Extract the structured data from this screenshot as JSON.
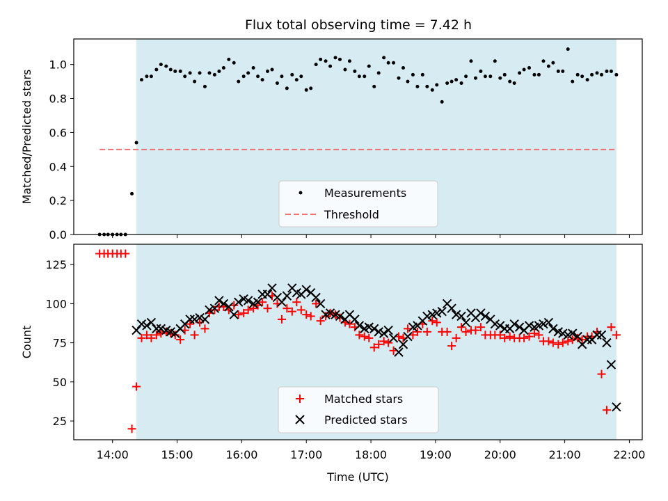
{
  "chart_data": [
    {
      "type": "scatter",
      "title": "Flux total observing time = 7.42 h",
      "ylabel": "Matched/Predicted stars",
      "xlabel": "",
      "xlim": [
        13.4,
        22.2
      ],
      "ylim": [
        0.0,
        1.15
      ],
      "yticks": [
        0.0,
        0.2,
        0.4,
        0.6,
        0.8,
        1.0
      ],
      "ytick_labels": [
        "0.0",
        "0.2",
        "0.4",
        "0.6",
        "0.8",
        "1.0"
      ],
      "xticks": [
        14,
        15,
        16,
        17,
        18,
        19,
        20,
        21,
        22
      ],
      "shaded_span": {
        "x": [
          14.37,
          21.8
        ],
        "color": "#add8e6"
      },
      "threshold": {
        "name": "Threshold",
        "value": 0.5,
        "x": [
          13.8,
          21.8
        ],
        "color": "#f07070"
      },
      "legend": [
        "Measurements",
        "Threshold"
      ],
      "legend_position": "lower center",
      "series": [
        {
          "name": "Measurements",
          "color": "#000000",
          "x": [
            13.8,
            13.87,
            13.93,
            14.0,
            14.07,
            14.13,
            14.2,
            14.3,
            14.37,
            14.45,
            14.53,
            14.6,
            14.68,
            14.75,
            14.83,
            14.9,
            14.97,
            15.05,
            15.12,
            15.2,
            15.27,
            15.35,
            15.43,
            15.5,
            15.58,
            15.65,
            15.72,
            15.8,
            15.88,
            15.95,
            16.03,
            16.1,
            16.18,
            16.25,
            16.32,
            16.4,
            16.47,
            16.55,
            16.62,
            16.7,
            16.78,
            16.85,
            16.92,
            17.0,
            17.07,
            17.15,
            17.22,
            17.3,
            17.37,
            17.45,
            17.52,
            17.6,
            17.67,
            17.75,
            17.82,
            17.9,
            17.97,
            18.05,
            18.12,
            18.2,
            18.27,
            18.35,
            18.43,
            18.5,
            18.57,
            18.65,
            18.72,
            18.8,
            18.87,
            18.95,
            19.02,
            19.1,
            19.18,
            19.25,
            19.32,
            19.4,
            19.47,
            19.55,
            19.62,
            19.7,
            19.77,
            19.85,
            19.92,
            20.0,
            20.07,
            20.15,
            20.22,
            20.3,
            20.37,
            20.45,
            20.53,
            20.6,
            20.67,
            20.75,
            20.82,
            20.9,
            20.97,
            21.05,
            21.12,
            21.2,
            21.27,
            21.35,
            21.42,
            21.5,
            21.57,
            21.65,
            21.72,
            21.8
          ],
          "y": [
            0.0,
            0.0,
            0.0,
            0.0,
            0.0,
            0.0,
            0.0,
            0.24,
            0.54,
            0.91,
            0.93,
            0.93,
            0.97,
            1.0,
            0.99,
            0.97,
            0.96,
            0.96,
            0.93,
            0.95,
            0.9,
            0.95,
            0.87,
            0.95,
            0.94,
            0.96,
            0.98,
            1.03,
            1.01,
            0.9,
            0.93,
            0.95,
            0.98,
            0.93,
            0.91,
            0.96,
            0.97,
            0.89,
            0.93,
            0.86,
            0.94,
            0.91,
            0.93,
            0.85,
            0.86,
            1.0,
            1.03,
            1.02,
            0.99,
            1.04,
            1.03,
            0.97,
            1.02,
            0.96,
            0.93,
            0.93,
            0.99,
            0.87,
            0.95,
            1.04,
            1.01,
            1.01,
            0.92,
            0.98,
            0.9,
            0.94,
            0.87,
            0.94,
            0.87,
            0.85,
            0.88,
            0.78,
            0.89,
            0.9,
            0.91,
            0.89,
            0.93,
            1.02,
            0.92,
            0.96,
            0.93,
            0.93,
            1.02,
            0.92,
            0.94,
            0.9,
            0.89,
            0.95,
            0.97,
            0.98,
            0.94,
            0.94,
            1.02,
            0.99,
            1.01,
            0.96,
            0.96,
            1.09,
            0.9,
            0.94,
            0.93,
            0.91,
            0.94,
            0.95,
            0.94,
            0.96,
            0.96,
            0.94
          ]
        }
      ]
    },
    {
      "type": "scatter",
      "title": "",
      "xlabel": "Time (UTC)",
      "ylabel": "Count",
      "xlim": [
        13.4,
        22.2
      ],
      "ylim": [
        13,
        138
      ],
      "yticks": [
        25,
        50,
        75,
        100,
        125
      ],
      "ytick_labels": [
        "25",
        "50",
        "75",
        "100",
        "125"
      ],
      "xticks": [
        14,
        15,
        16,
        17,
        18,
        19,
        20,
        21,
        22
      ],
      "xtick_labels": [
        "14:00",
        "15:00",
        "16:00",
        "17:00",
        "18:00",
        "19:00",
        "20:00",
        "21:00",
        "22:00"
      ],
      "shaded_span": {
        "x": [
          14.37,
          21.8
        ],
        "color": "#add8e6"
      },
      "legend": [
        "Matched stars",
        "Predicted stars"
      ],
      "legend_position": "lower center",
      "series": [
        {
          "name": "Matched stars",
          "marker": "plus",
          "color": "#ff0000",
          "x": [
            13.8,
            13.87,
            13.93,
            14.0,
            14.07,
            14.13,
            14.2,
            14.3,
            14.37,
            14.45,
            14.53,
            14.6,
            14.68,
            14.75,
            14.83,
            14.9,
            14.97,
            15.05,
            15.12,
            15.2,
            15.27,
            15.35,
            15.43,
            15.5,
            15.58,
            15.65,
            15.72,
            15.8,
            15.88,
            15.95,
            16.03,
            16.1,
            16.18,
            16.25,
            16.32,
            16.4,
            16.47,
            16.55,
            16.62,
            16.7,
            16.78,
            16.85,
            16.92,
            17.0,
            17.07,
            17.15,
            17.22,
            17.3,
            17.37,
            17.45,
            17.52,
            17.6,
            17.67,
            17.75,
            17.82,
            17.9,
            17.97,
            18.05,
            18.12,
            18.2,
            18.27,
            18.35,
            18.43,
            18.5,
            18.57,
            18.65,
            18.72,
            18.8,
            18.87,
            18.95,
            19.02,
            19.1,
            19.18,
            19.25,
            19.32,
            19.4,
            19.47,
            19.55,
            19.62,
            19.7,
            19.77,
            19.85,
            19.92,
            20.0,
            20.07,
            20.15,
            20.22,
            20.3,
            20.37,
            20.45,
            20.53,
            20.6,
            20.67,
            20.75,
            20.82,
            20.9,
            20.97,
            21.05,
            21.12,
            21.2,
            21.27,
            21.35,
            21.42,
            21.5,
            21.57,
            21.65,
            21.72,
            21.8
          ],
          "y": [
            132,
            132,
            132,
            132,
            132,
            132,
            132,
            20,
            47,
            78,
            80,
            78,
            80,
            81,
            82,
            81,
            80,
            77,
            83,
            87,
            80,
            88,
            84,
            94,
            96,
            98,
            98,
            96,
            99,
            93,
            94,
            96,
            97,
            99,
            101,
            97,
            105,
            100,
            90,
            97,
            95,
            101,
            96,
            93,
            92,
            100,
            89,
            92,
            94,
            93,
            91,
            88,
            87,
            85,
            80,
            79,
            78,
            72,
            74,
            76,
            75,
            70,
            79,
            78,
            84,
            80,
            82,
            87,
            82,
            89,
            88,
            82,
            82,
            73,
            78,
            85,
            82,
            83,
            83,
            85,
            80,
            80,
            80,
            80,
            78,
            79,
            78,
            78,
            78,
            79,
            81,
            80,
            76,
            76,
            75,
            74,
            75,
            76,
            77,
            78,
            77,
            79,
            79,
            82,
            55,
            32,
            85,
            80
          ]
        },
        {
          "name": "Predicted stars",
          "marker": "x",
          "color": "#000000",
          "x": [
            14.37,
            14.45,
            14.53,
            14.6,
            14.68,
            14.75,
            14.83,
            14.9,
            14.97,
            15.05,
            15.12,
            15.2,
            15.27,
            15.35,
            15.43,
            15.5,
            15.58,
            15.65,
            15.72,
            15.8,
            15.88,
            15.95,
            16.03,
            16.1,
            16.18,
            16.25,
            16.32,
            16.4,
            16.47,
            16.55,
            16.62,
            16.7,
            16.78,
            16.85,
            16.92,
            17.0,
            17.07,
            17.15,
            17.22,
            17.3,
            17.37,
            17.45,
            17.52,
            17.6,
            17.67,
            17.75,
            17.82,
            17.9,
            17.97,
            18.05,
            18.12,
            18.2,
            18.27,
            18.35,
            18.43,
            18.5,
            18.57,
            18.65,
            18.72,
            18.8,
            18.87,
            18.95,
            19.02,
            19.1,
            19.18,
            19.25,
            19.32,
            19.4,
            19.47,
            19.55,
            19.62,
            19.7,
            19.77,
            19.85,
            19.92,
            20.0,
            20.07,
            20.15,
            20.22,
            20.3,
            20.37,
            20.45,
            20.53,
            20.6,
            20.67,
            20.75,
            20.82,
            20.9,
            20.97,
            21.05,
            21.12,
            21.2,
            21.27,
            21.35,
            21.42,
            21.5,
            21.57,
            21.65,
            21.72,
            21.8
          ],
          "y": [
            83,
            87,
            86,
            88,
            84,
            84,
            83,
            82,
            81,
            84,
            87,
            90,
            90,
            91,
            90,
            96,
            97,
            102,
            100,
            98,
            93,
            101,
            103,
            102,
            100,
            101,
            106,
            106,
            110,
            104,
            101,
            105,
            110,
            107,
            106,
            109,
            107,
            104,
            100,
            93,
            94,
            93,
            92,
            90,
            93,
            90,
            86,
            84,
            85,
            84,
            82,
            81,
            83,
            78,
            69,
            74,
            79,
            85,
            86,
            89,
            92,
            93,
            94,
            95,
            100,
            97,
            93,
            92,
            88,
            94,
            91,
            94,
            92,
            90,
            87,
            86,
            84,
            84,
            87,
            85,
            83,
            86,
            85,
            86,
            87,
            88,
            84,
            82,
            81,
            80,
            81,
            79,
            74,
            77,
            77,
            80,
            80,
            75,
            61,
            34
          ]
        }
      ]
    }
  ]
}
